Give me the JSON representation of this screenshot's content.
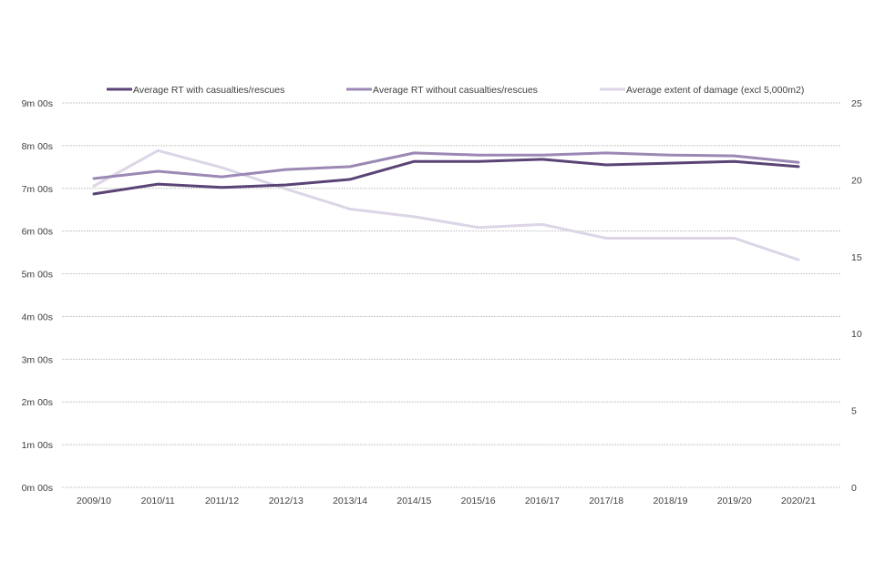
{
  "chart_data": {
    "type": "line",
    "title": "",
    "xlabel": "",
    "ylabel": "",
    "ylabel_right": "",
    "categories": [
      "2009/10",
      "2010/11",
      "2011/12",
      "2012/13",
      "2013/14",
      "2014/15",
      "2015/16",
      "2016/17",
      "2017/18",
      "2018/19",
      "2019/20",
      "2020/21"
    ],
    "y_left": {
      "range_minutes": [
        0,
        9
      ],
      "ticks": [
        {
          "value": 0,
          "label": "0m 00s"
        },
        {
          "value": 1,
          "label": "1m 00s"
        },
        {
          "value": 2,
          "label": "2m 00s"
        },
        {
          "value": 3,
          "label": "3m 00s"
        },
        {
          "value": 4,
          "label": "4m 00s"
        },
        {
          "value": 5,
          "label": "5m 00s"
        },
        {
          "value": 6,
          "label": "6m 00s"
        },
        {
          "value": 7,
          "label": "7m 00s"
        },
        {
          "value": 8,
          "label": "8m 00s"
        },
        {
          "value": 9,
          "label": "9m 00s"
        }
      ]
    },
    "y_right": {
      "range": [
        0,
        25
      ],
      "ticks": [
        {
          "value": 0,
          "label": "0"
        },
        {
          "value": 5,
          "label": "5"
        },
        {
          "value": 10,
          "label": "10"
        },
        {
          "value": 15,
          "label": "15"
        },
        {
          "value": 20,
          "label": "20"
        },
        {
          "value": 25,
          "label": "25"
        }
      ]
    },
    "grid": true,
    "legend_position": "top",
    "series": [
      {
        "name": "Average RT with casualties/rescues",
        "axis": "left",
        "unit": "minutes",
        "color": "#5a4475",
        "values": [
          6.87,
          7.1,
          7.02,
          7.08,
          7.21,
          7.63,
          7.63,
          7.68,
          7.55,
          7.59,
          7.63,
          7.51
        ]
      },
      {
        "name": "Average RT without casualties/rescues",
        "axis": "left",
        "unit": "minutes",
        "color": "#9b88b4",
        "values": [
          7.23,
          7.4,
          7.27,
          7.44,
          7.51,
          7.83,
          7.78,
          7.78,
          7.83,
          7.78,
          7.76,
          7.61
        ]
      },
      {
        "name": "Average extent of damage (excl 5,000m2)",
        "axis": "right",
        "unit": "m2",
        "color": "#dcd5e6",
        "values": [
          19.6,
          21.9,
          20.8,
          19.4,
          18.1,
          17.6,
          16.9,
          17.1,
          16.2,
          16.2,
          16.2,
          14.8
        ]
      }
    ]
  }
}
